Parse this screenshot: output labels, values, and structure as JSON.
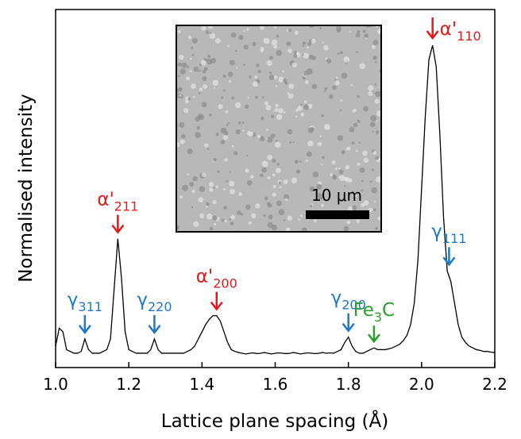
{
  "chart_data": {
    "type": "line",
    "x_label": "Lattice plane spacing (Å)",
    "y_label": "Normalised intensity",
    "x": [
      1.0,
      1.01,
      1.02,
      1.03,
      1.04,
      1.05,
      1.06,
      1.07,
      1.08,
      1.09,
      1.1,
      1.11,
      1.12,
      1.13,
      1.14,
      1.15,
      1.16,
      1.17,
      1.18,
      1.19,
      1.2,
      1.21,
      1.22,
      1.23,
      1.24,
      1.25,
      1.26,
      1.27,
      1.28,
      1.29,
      1.3,
      1.31,
      1.32,
      1.33,
      1.34,
      1.35,
      1.36,
      1.37,
      1.38,
      1.39,
      1.4,
      1.41,
      1.42,
      1.43,
      1.44,
      1.45,
      1.46,
      1.47,
      1.48,
      1.49,
      1.5,
      1.51,
      1.52,
      1.53,
      1.54,
      1.55,
      1.56,
      1.57,
      1.58,
      1.59,
      1.6,
      1.61,
      1.62,
      1.63,
      1.64,
      1.65,
      1.66,
      1.67,
      1.68,
      1.69,
      1.7,
      1.71,
      1.72,
      1.73,
      1.74,
      1.75,
      1.76,
      1.77,
      1.78,
      1.79,
      1.8,
      1.81,
      1.82,
      1.83,
      1.84,
      1.85,
      1.86,
      1.87,
      1.88,
      1.89,
      1.9,
      1.91,
      1.92,
      1.93,
      1.94,
      1.95,
      1.96,
      1.97,
      1.98,
      1.99,
      2.0,
      2.01,
      2.02,
      2.03,
      2.04,
      2.05,
      2.06,
      2.07,
      2.08,
      2.09,
      2.1,
      2.11,
      2.12,
      2.13,
      2.14,
      2.15,
      2.16,
      2.17,
      2.18,
      2.19,
      2.2
    ],
    "values": [
      0.06,
      0.11,
      0.1,
      0.05,
      0.045,
      0.04,
      0.04,
      0.045,
      0.08,
      0.05,
      0.04,
      0.04,
      0.04,
      0.045,
      0.05,
      0.08,
      0.22,
      0.36,
      0.25,
      0.1,
      0.05,
      0.045,
      0.04,
      0.04,
      0.04,
      0.04,
      0.05,
      0.08,
      0.05,
      0.04,
      0.04,
      0.04,
      0.04,
      0.04,
      0.04,
      0.04,
      0.045,
      0.05,
      0.06,
      0.08,
      0.1,
      0.12,
      0.135,
      0.145,
      0.145,
      0.13,
      0.1,
      0.07,
      0.05,
      0.045,
      0.042,
      0.04,
      0.038,
      0.04,
      0.041,
      0.039,
      0.04,
      0.042,
      0.04,
      0.038,
      0.04,
      0.041,
      0.04,
      0.039,
      0.04,
      0.042,
      0.04,
      0.038,
      0.04,
      0.041,
      0.04,
      0.039,
      0.04,
      0.042,
      0.04,
      0.041,
      0.04,
      0.045,
      0.05,
      0.07,
      0.085,
      0.06,
      0.045,
      0.04,
      0.04,
      0.045,
      0.05,
      0.055,
      0.05,
      0.05,
      0.05,
      0.052,
      0.055,
      0.06,
      0.065,
      0.075,
      0.09,
      0.12,
      0.18,
      0.3,
      0.5,
      0.7,
      0.86,
      0.9,
      0.84,
      0.65,
      0.42,
      0.27,
      0.24,
      0.18,
      0.12,
      0.085,
      0.07,
      0.06,
      0.055,
      0.05,
      0.048,
      0.045,
      0.045,
      0.043,
      0.042
    ],
    "color": "#000000",
    "xlim": [
      1.0,
      2.2
    ],
    "ylim": [
      0,
      1
    ],
    "xticks": [
      {
        "value": 1.0,
        "label": "1.0"
      },
      1.2,
      1.4,
      1.6,
      1.8,
      {
        "value": 2.0,
        "label": "2.0"
      },
      2.2
    ],
    "annotations": [
      {
        "label": "α'",
        "subscript": "110",
        "x": 2.03,
        "color": "#e31a1c"
      },
      {
        "label": "α'",
        "subscript": "211",
        "x": 1.17,
        "color": "#e31a1c"
      },
      {
        "label": "α'",
        "subscript": "200",
        "x": 1.44,
        "color": "#e31a1c"
      },
      {
        "label": "γ",
        "subscript": "311",
        "x": 1.08,
        "color": "#1f78c8"
      },
      {
        "label": "γ",
        "subscript": "220",
        "x": 1.27,
        "color": "#1f78c8"
      },
      {
        "label": "γ",
        "subscript": "200",
        "x": 1.8,
        "color": "#1f78c8"
      },
      {
        "label": "γ",
        "subscript": "111",
        "x": 2.075,
        "color": "#1f78c8"
      },
      {
        "label": "Fe",
        "subscript": "3",
        "suffix": "C",
        "x": 1.87,
        "color": "#2ca02c"
      }
    ],
    "inset_scale_label": "10 μm"
  }
}
